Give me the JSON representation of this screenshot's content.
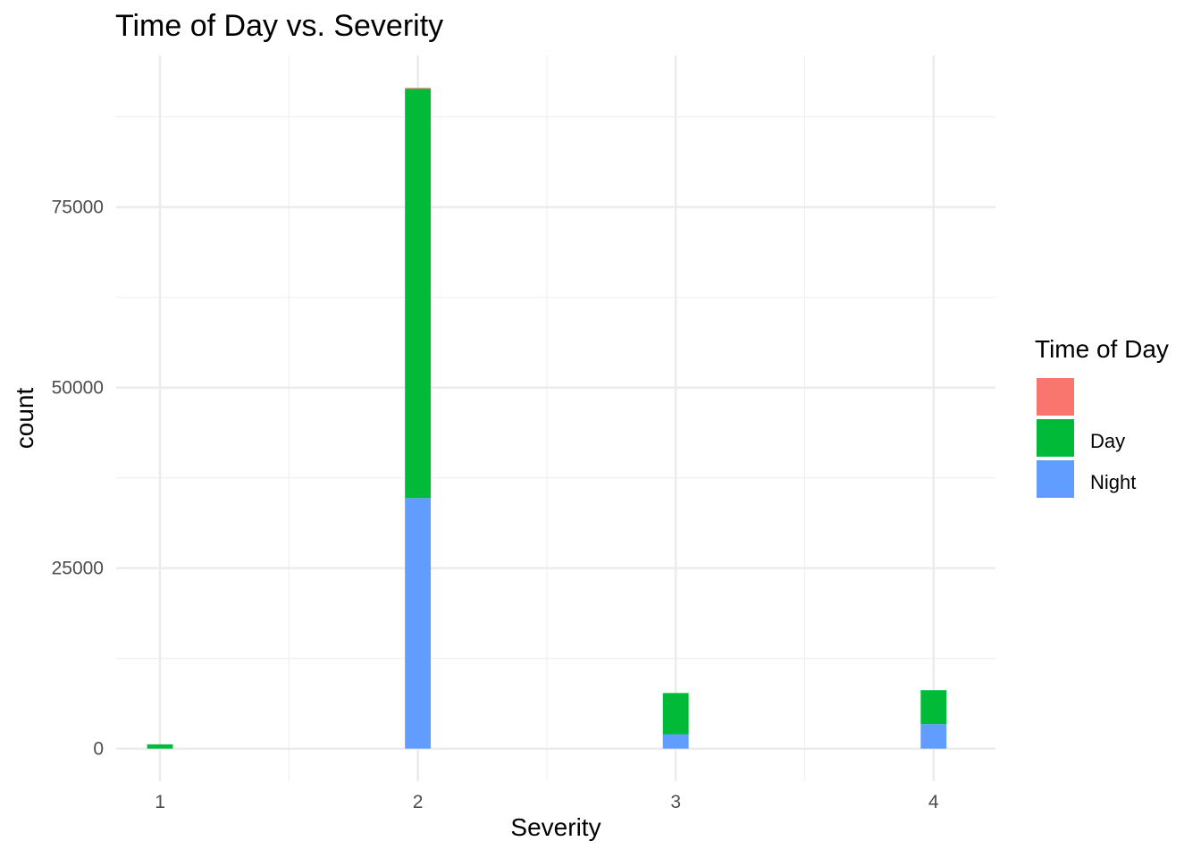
{
  "chart_data": {
    "type": "bar",
    "stacked": true,
    "title": "Time of Day vs. Severity",
    "xlabel": "Severity",
    "ylabel": "count",
    "x_ticks": [
      "1",
      "2",
      "3",
      "4"
    ],
    "y_ticks": [
      0,
      25000,
      50000,
      75000
    ],
    "xlim": [
      0.83,
      4.24
    ],
    "ylim": [
      -4500,
      96000
    ],
    "grid": true,
    "legend": {
      "title": "Time of Day",
      "position": "right"
    },
    "categories": [
      1,
      2,
      3,
      4
    ],
    "series": [
      {
        "name": "",
        "color": "#F8766D",
        "values": [
          0,
          100,
          0,
          0
        ]
      },
      {
        "name": "Day",
        "color": "#00BA38",
        "values": [
          600,
          56700,
          5700,
          4700
        ]
      },
      {
        "name": "Night",
        "color": "#619CFF",
        "values": [
          0,
          34700,
          2000,
          3400
        ]
      }
    ]
  }
}
